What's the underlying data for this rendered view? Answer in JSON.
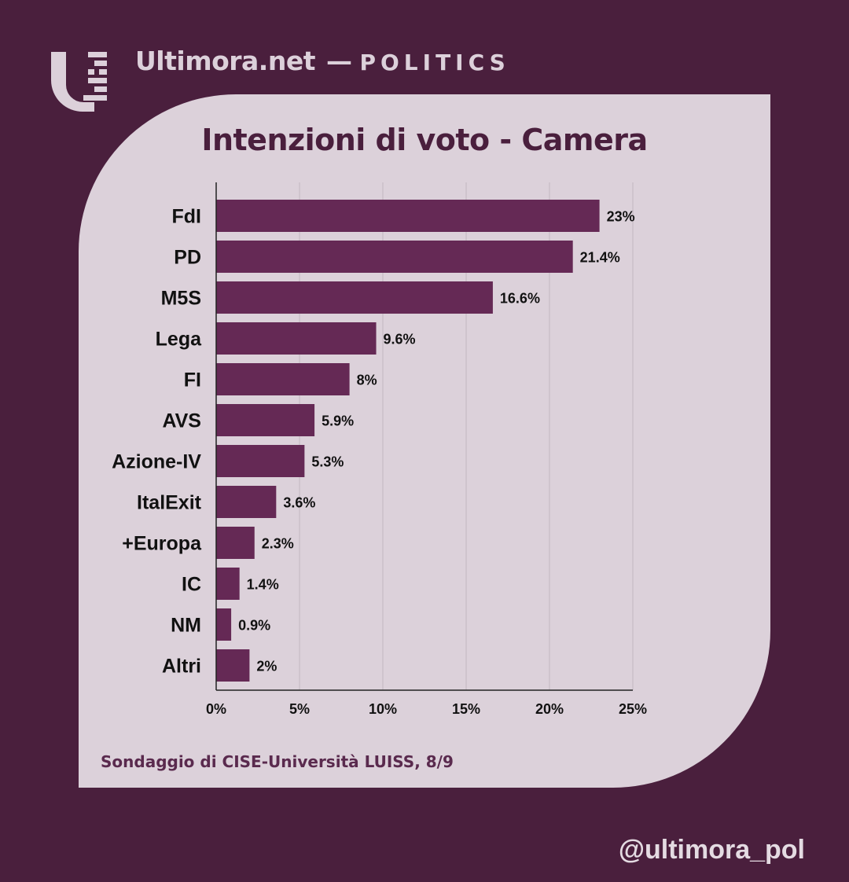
{
  "header": {
    "brand": "Ultimora.net",
    "separator": "—",
    "section": "POLITICS"
  },
  "chart_data": {
    "type": "bar",
    "orientation": "horizontal",
    "title": "Intenzioni di voto - Camera",
    "categories": [
      "FdI",
      "PD",
      "M5S",
      "Lega",
      "FI",
      "AVS",
      "Azione-IV",
      "ItalExit",
      "+Europa",
      "IC",
      "NM",
      "Altri"
    ],
    "values": [
      23,
      21.4,
      16.6,
      9.6,
      8,
      5.9,
      5.3,
      3.6,
      2.3,
      1.4,
      0.9,
      2
    ],
    "value_labels": [
      "23%",
      "21.4%",
      "16.6%",
      "9.6%",
      "8%",
      "5.9%",
      "5.3%",
      "3.6%",
      "2.3%",
      "1.4%",
      "0.9%",
      "2%"
    ],
    "xlim": [
      0,
      25
    ],
    "xticks": [
      0,
      5,
      10,
      15,
      20,
      25
    ],
    "xtick_labels": [
      "0%",
      "5%",
      "10%",
      "15%",
      "20%",
      "25%"
    ],
    "grid": true,
    "legend": "none"
  },
  "footer": {
    "source": "Sondaggio di CISE-Università LUISS, 8/9",
    "handle": "@ultimora_pol"
  },
  "colors": {
    "background": "#4a1f3d",
    "card": "#dcd1da",
    "bar": "#652955",
    "title": "#4a1f3d"
  },
  "icons": {
    "logo": "ultimora-logo-icon"
  }
}
